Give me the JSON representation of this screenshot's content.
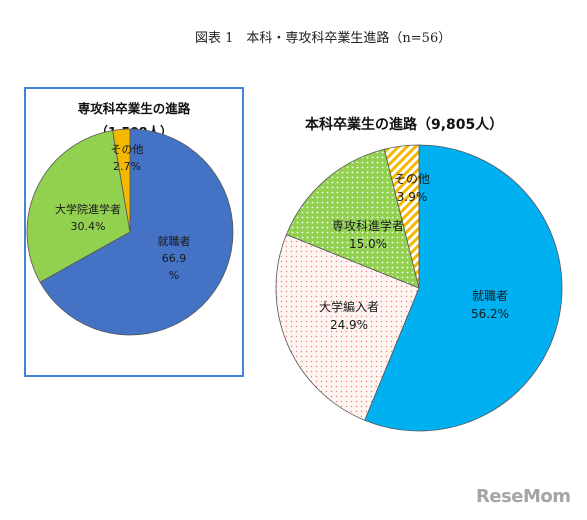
{
  "figure_title": "図表 1　本科・専攻科卒業生進路（n=56）",
  "logo_text": "ReseMom",
  "chart_data": [
    {
      "type": "pie",
      "title": "専攻科卒業生の進路",
      "subtitle": "（1,508人）",
      "slices": [
        {
          "label": "就職者",
          "value": 66.9,
          "value_label": "66.9\n%",
          "color": "#4472c4"
        },
        {
          "label": "大学院進学者",
          "value": 30.4,
          "value_label": "30.4%",
          "color": "#92d050"
        },
        {
          "label": "その他",
          "value": 2.7,
          "value_label": "2.7%",
          "color": "#f5b800"
        }
      ]
    },
    {
      "type": "pie",
      "title": "本科卒業生の進路（9,805人）",
      "slices": [
        {
          "label": "就職者",
          "value": 56.2,
          "value_label": "56.2%",
          "color": "#00b0f0"
        },
        {
          "label": "大学編入者",
          "value": 24.9,
          "value_label": "24.9%",
          "color": "#fde9e6",
          "pattern": "dots-red"
        },
        {
          "label": "専攻科進学者",
          "value": 15.0,
          "value_label": "15.0%",
          "color": "#92d050",
          "pattern": "dots-green"
        },
        {
          "label": "その他",
          "value": 3.9,
          "value_label": "3.9%",
          "color": "#ffe07a",
          "pattern": "stripes-yellow"
        }
      ]
    }
  ]
}
